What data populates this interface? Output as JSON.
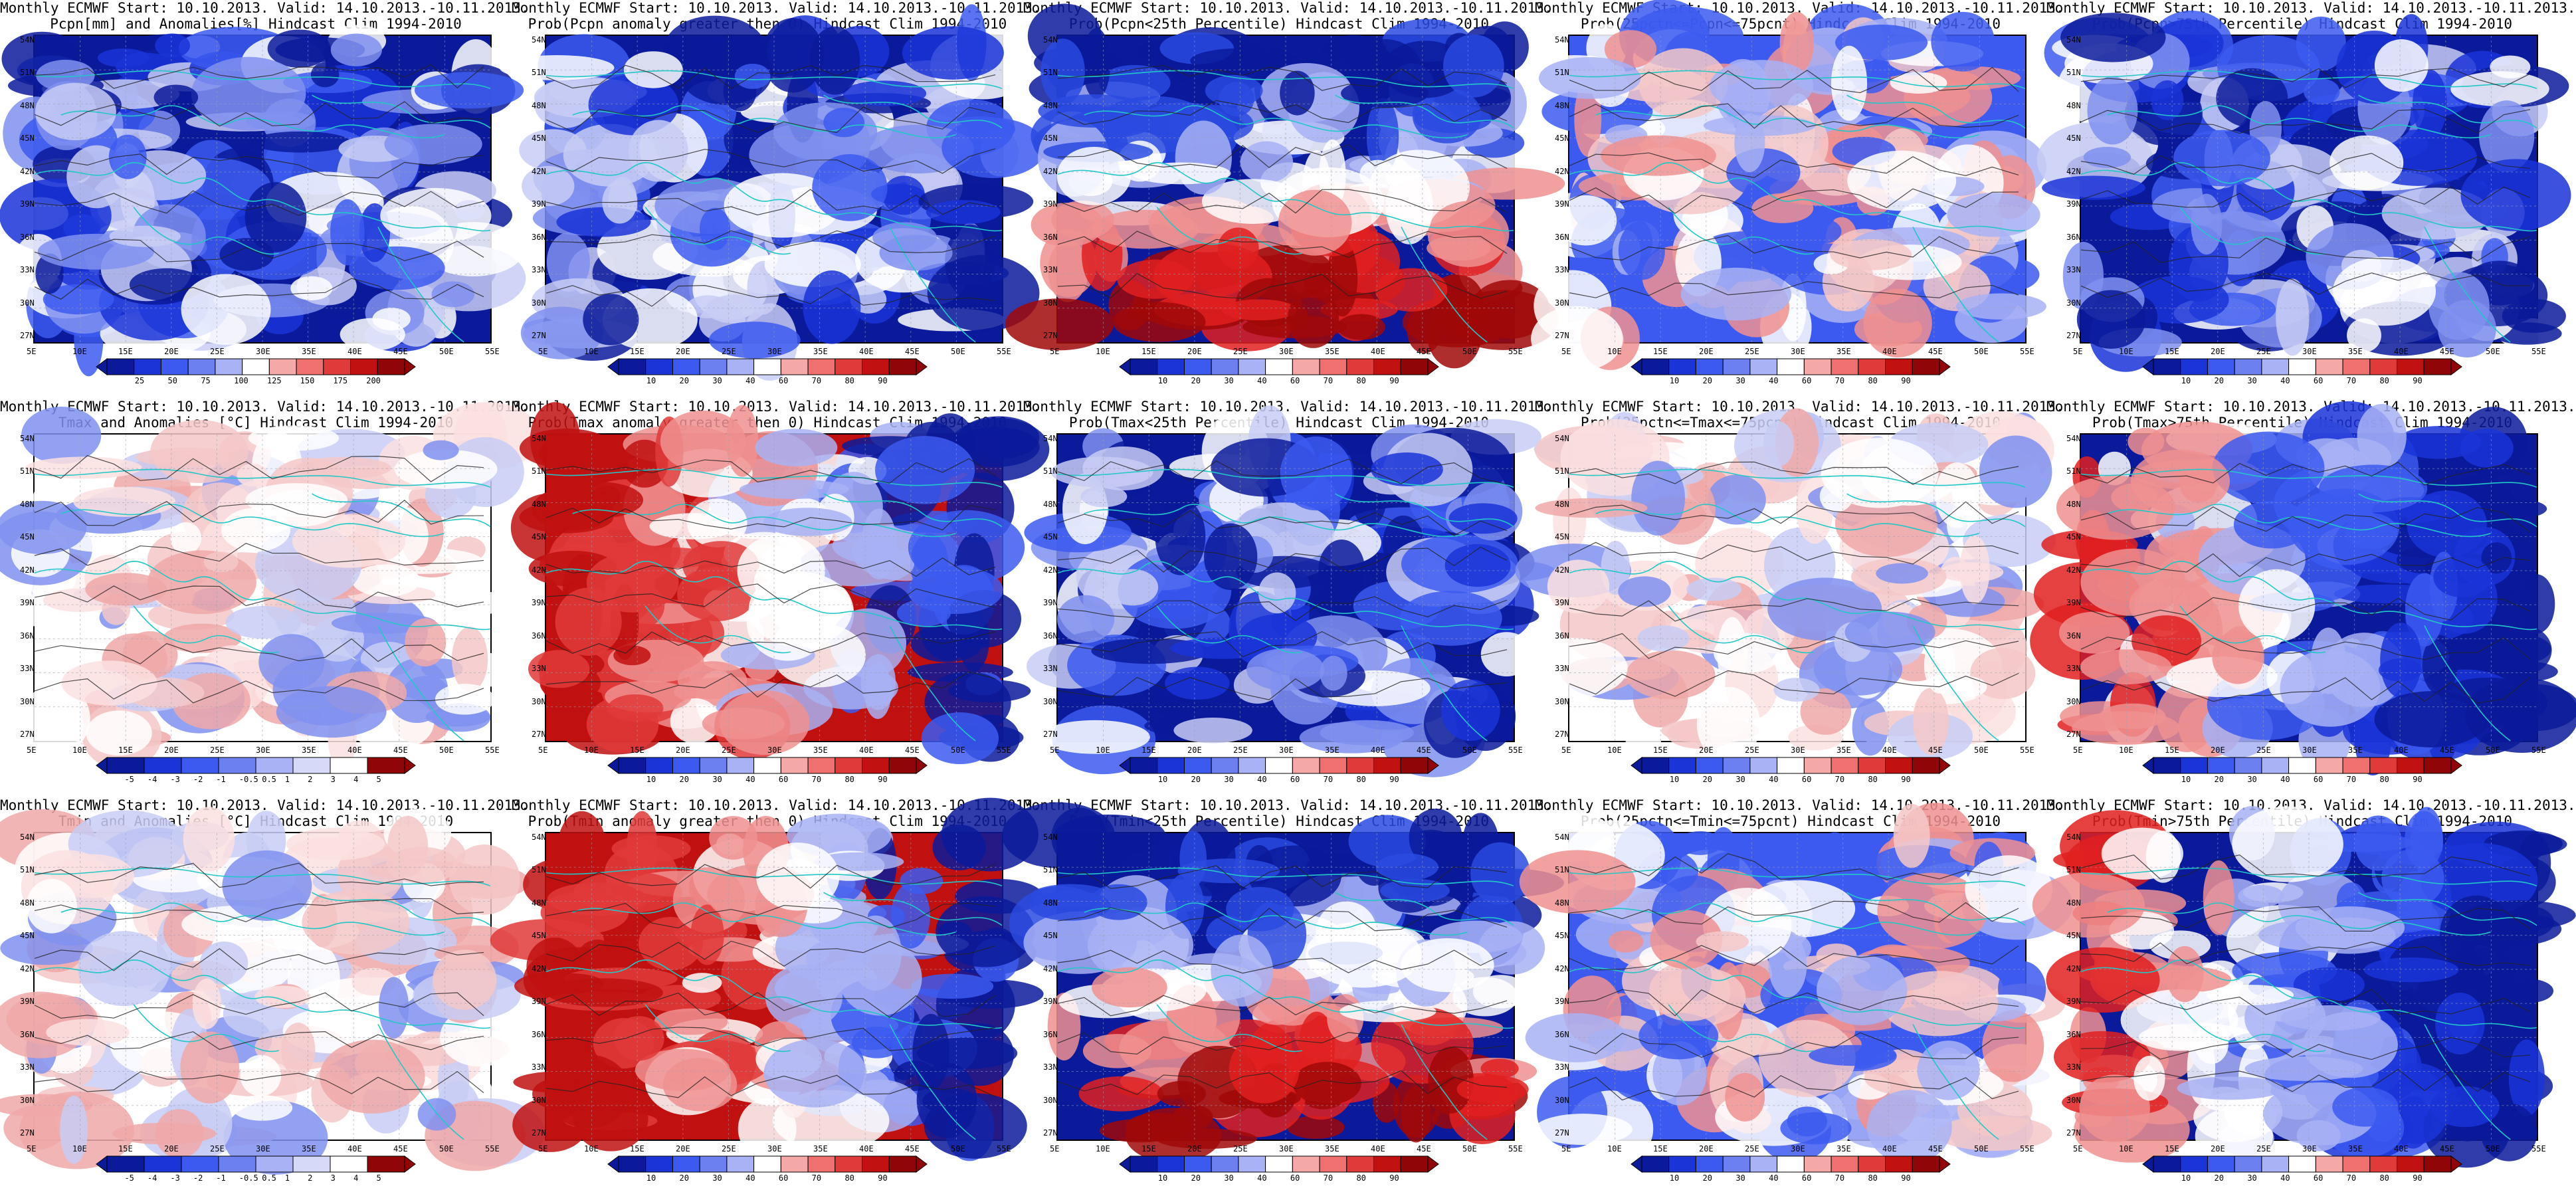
{
  "figure": {
    "lat_ticks": [
      "54N",
      "51N",
      "48N",
      "45N",
      "42N",
      "39N",
      "36N",
      "33N",
      "30N",
      "27N"
    ],
    "lon_ticks": [
      "5E",
      "10E",
      "15E",
      "20E",
      "25E",
      "30E",
      "35E",
      "40E",
      "45E",
      "50E",
      "55E"
    ],
    "colors": {
      "coast": "#22c7c7",
      "contour": "#222222",
      "deep_blue": "#0a1a9a",
      "deep_red": "#b01010"
    },
    "panels": [
      {
        "id": "r1c1",
        "line1": "Monthly ECMWF Start: 10.10.2013. Valid: 14.10.2013.-10.11.2013.",
        "line2": "Pcpn[mm] and Anomalies[%] Hindcast Clim 1994-2010",
        "colorbar": [
          "25",
          "50",
          "75",
          "100",
          "125",
          "150",
          "175",
          "200"
        ],
        "pattern": "wet"
      },
      {
        "id": "r1c2",
        "line1": "Monthly ECMWF Start: 10.10.2013. Valid: 14.10.2013.-10.11.2013.",
        "line2": "Prob(Pcpn anomaly greater then 0) Hindcast Clim 1994-2010",
        "colorbar": [
          "10",
          "20",
          "30",
          "40",
          "60",
          "70",
          "80",
          "90"
        ],
        "pattern": "wet"
      },
      {
        "id": "r1c3",
        "line1": "Monthly ECMWF Start: 10.10.2013. Valid: 14.10.2013.-10.11.2013.",
        "line2": "Prob(Pcpn<25th Percentile) Hindcast Clim 1994-2010",
        "colorbar": [
          "10",
          "20",
          "30",
          "40",
          "60",
          "70",
          "80",
          "90"
        ],
        "pattern": "dry-south"
      },
      {
        "id": "r1c4",
        "line1": "Monthly ECMWF Start: 10.10.2013. Valid: 14.10.2013.-10.11.2013.",
        "line2": "Prob(25pctn<=Pcpn<=75pcnt) Hindcast Clim 1994-2010",
        "colorbar": [
          "10",
          "20",
          "30",
          "40",
          "60",
          "70",
          "80",
          "90"
        ],
        "pattern": "mixed-light"
      },
      {
        "id": "r1c5",
        "line1": "Monthly ECMWF Start: 10.10.2013. Valid: 14.10.2013.-10.11.2013.",
        "line2": "Prob(Pcpn>75th Percentile) Hindcast Clim 1994-2010",
        "colorbar": [
          "10",
          "20",
          "30",
          "40",
          "60",
          "70",
          "80",
          "90"
        ],
        "pattern": "wet"
      },
      {
        "id": "r2c1",
        "line1": "Monthly ECMWF Start: 10.10.2013. Valid: 14.10.2013.-10.11.2013.",
        "line2": "Tmax and Anomalies [°C] Hindcast Clim 1994-2010",
        "colorbar": [
          "-5",
          "-4",
          "-3",
          "-2",
          "-1",
          "-0.5",
          "0.5",
          "1",
          "2",
          "3",
          "4",
          "5"
        ],
        "pattern": "warm-light"
      },
      {
        "id": "r2c2",
        "line1": "Monthly ECMWF Start: 10.10.2013. Valid: 14.10.2013.-10.11.2013.",
        "line2": "Prob(Tmax anomaly greater then 0) Hindcast Clim 1994-2010",
        "colorbar": [
          "10",
          "20",
          "30",
          "40",
          "60",
          "70",
          "80",
          "90"
        ],
        "pattern": "warm-west"
      },
      {
        "id": "r2c3",
        "line1": "Monthly ECMWF Start: 10.10.2013. Valid: 14.10.2013.-10.11.2013.",
        "line2": "Prob(Tmax<25th Percentile) Hindcast Clim 1994-2010",
        "colorbar": [
          "10",
          "20",
          "30",
          "40",
          "60",
          "70",
          "80",
          "90"
        ],
        "pattern": "wet"
      },
      {
        "id": "r2c4",
        "line1": "Monthly ECMWF Start: 10.10.2013. Valid: 14.10.2013.-10.11.2013.",
        "line2": "Prob(25pctn<=Tmax<=75pcnt) Hindcast Clim 1994-2010",
        "colorbar": [
          "10",
          "20",
          "30",
          "40",
          "60",
          "70",
          "80",
          "90"
        ],
        "pattern": "warm-light"
      },
      {
        "id": "r2c5",
        "line1": "Monthly ECMWF Start: 10.10.2013. Valid: 14.10.2013.-10.11.2013.",
        "line2": "Prob(Tmax>75th Percentile) Hindcast Clim 1994-2010",
        "colorbar": [
          "10",
          "20",
          "30",
          "40",
          "60",
          "70",
          "80",
          "90"
        ],
        "pattern": "cold-east"
      },
      {
        "id": "r3c1",
        "line1": "Monthly ECMWF Start: 10.10.2013. Valid: 14.10.2013.-10.11.2013.",
        "line2": "Tmin and Anomalies [°C] Hindcast Clim 1994-2010",
        "colorbar": [
          "-5",
          "-4",
          "-3",
          "-2",
          "-1",
          "-0.5",
          "0.5",
          "1",
          "2",
          "3",
          "4",
          "5"
        ],
        "pattern": "warm-light"
      },
      {
        "id": "r3c2",
        "line1": "Monthly ECMWF Start: 10.10.2013. Valid: 14.10.2013.-10.11.2013.",
        "line2": "Prob(Tmin anomaly greater then 0) Hindcast Clim 1994-2010",
        "colorbar": [
          "10",
          "20",
          "30",
          "40",
          "60",
          "70",
          "80",
          "90"
        ],
        "pattern": "warm-west"
      },
      {
        "id": "r3c3",
        "line1": "Monthly ECMWF Start: 10.10.2013. Valid: 14.10.2013.-10.11.2013.",
        "line2": "Prob(Tmin<25th Percentile) Hindcast Clim 1994-2010",
        "colorbar": [
          "10",
          "20",
          "30",
          "40",
          "60",
          "70",
          "80",
          "90"
        ],
        "pattern": "dry-south"
      },
      {
        "id": "r3c4",
        "line1": "Monthly ECMWF Start: 10.10.2013. Valid: 14.10.2013.-10.11.2013.",
        "line2": "Prob(25pctn<=Tmin<=75pcnt) Hindcast Clim 1994-2010",
        "colorbar": [
          "10",
          "20",
          "30",
          "40",
          "60",
          "70",
          "80",
          "90"
        ],
        "pattern": "mixed-light"
      },
      {
        "id": "r3c5",
        "line1": "Monthly ECMWF Start: 10.10.2013. Valid: 14.10.2013.-10.11.2013.",
        "line2": "Prob(Tmin>75th Percentile) Hindcast Clim 1994-2010",
        "colorbar": [
          "10",
          "20",
          "30",
          "40",
          "60",
          "70",
          "80",
          "90"
        ],
        "pattern": "cold-east"
      }
    ]
  }
}
